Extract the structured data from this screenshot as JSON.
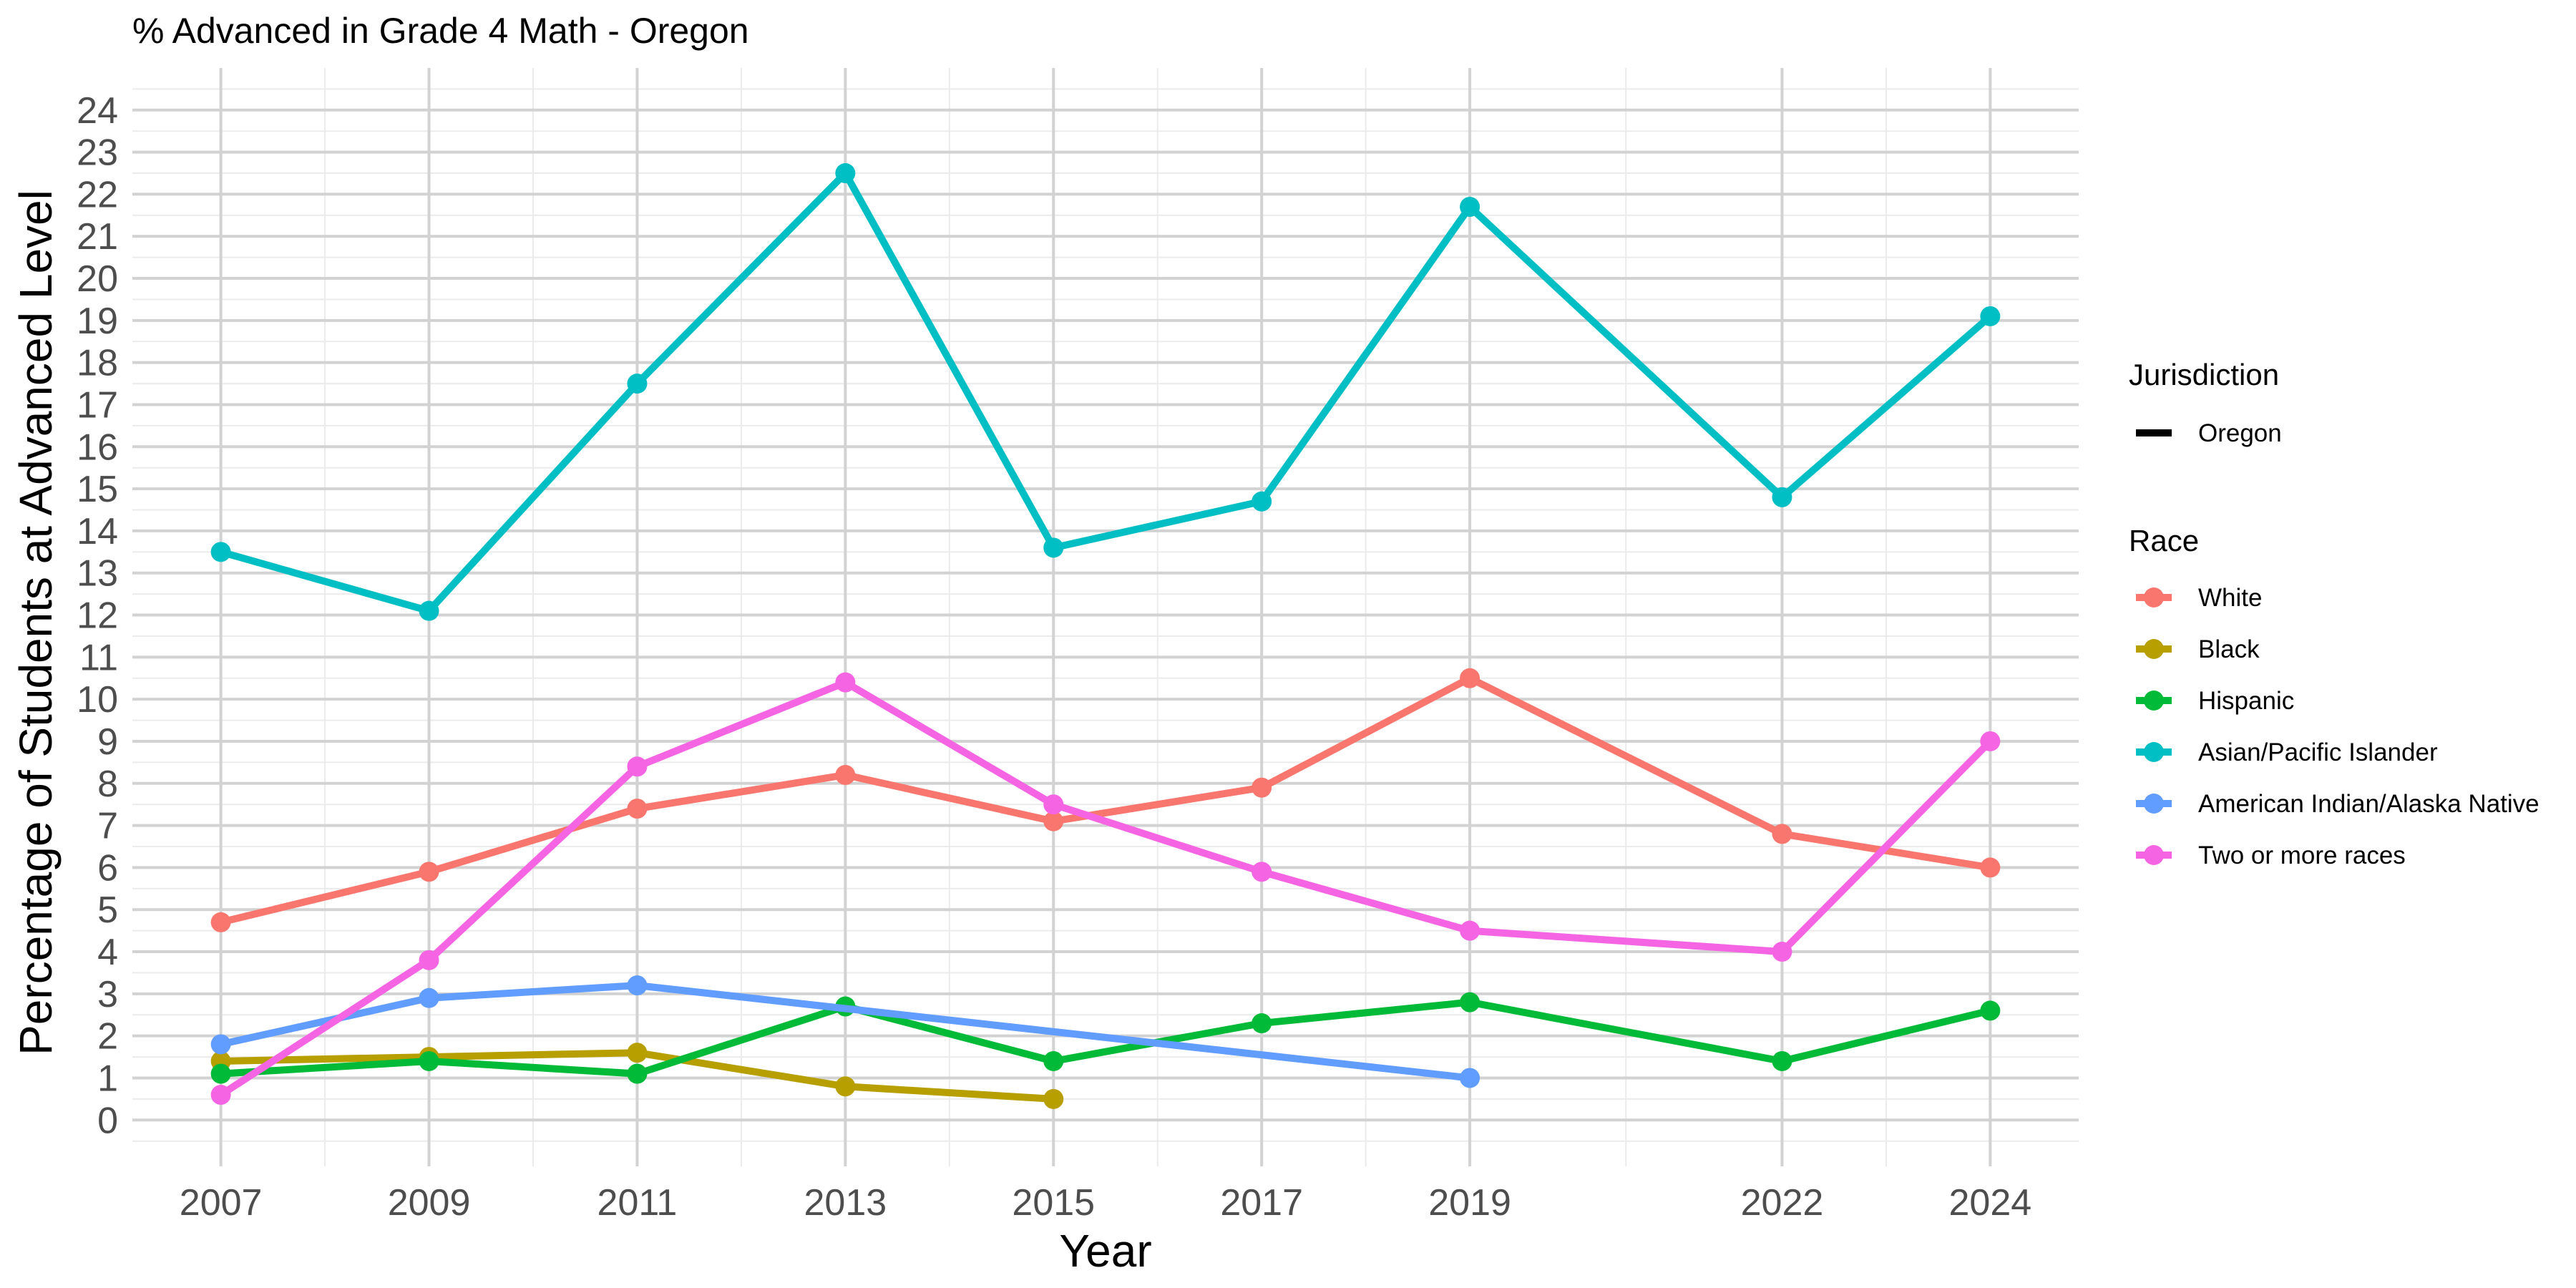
{
  "chart_data": {
    "type": "line",
    "title": "% Advanced in Grade 4 Math - Oregon",
    "xlabel": "Year",
    "ylabel": "Percentage of Students at Advanced Level",
    "x_ticks": [
      2007,
      2009,
      2011,
      2013,
      2015,
      2017,
      2019,
      2022,
      2024
    ],
    "y_ticks": [
      0,
      1,
      2,
      3,
      4,
      5,
      6,
      7,
      8,
      9,
      10,
      11,
      12,
      13,
      14,
      15,
      16,
      17,
      18,
      19,
      20,
      21,
      22,
      23,
      24
    ],
    "xlim": [
      2006.15,
      2024.85
    ],
    "ylim": [
      -1.1,
      25
    ],
    "grid": true,
    "legend_position": "right",
    "legend": {
      "jurisdiction_title": "Jurisdiction",
      "jurisdiction_items": [
        "Oregon"
      ],
      "race_title": "Race"
    },
    "series": [
      {
        "name": "White",
        "color": "#F8766D",
        "x": [
          2007,
          2009,
          2011,
          2013,
          2015,
          2017,
          2019,
          2022,
          2024
        ],
        "values": [
          4.7,
          5.9,
          7.4,
          8.2,
          7.1,
          7.9,
          10.5,
          6.8,
          6.0
        ]
      },
      {
        "name": "Black",
        "color": "#B79F00",
        "x": [
          2007,
          2009,
          2011,
          2013,
          2015
        ],
        "values": [
          1.4,
          1.5,
          1.6,
          0.8,
          0.5
        ]
      },
      {
        "name": "Hispanic",
        "color": "#00BA38",
        "x": [
          2007,
          2009,
          2011,
          2013,
          2015,
          2017,
          2019,
          2022,
          2024
        ],
        "values": [
          1.1,
          1.4,
          1.1,
          2.7,
          1.4,
          2.3,
          2.8,
          1.4,
          2.6
        ]
      },
      {
        "name": "Asian/Pacific Islander",
        "color": "#00BFC4",
        "x": [
          2007,
          2009,
          2011,
          2013,
          2015,
          2017,
          2019,
          2022,
          2024
        ],
        "values": [
          13.5,
          12.1,
          17.5,
          22.5,
          13.6,
          14.7,
          21.7,
          14.8,
          19.1
        ]
      },
      {
        "name": "American Indian/Alaska Native",
        "color": "#619CFF",
        "x": [
          2007,
          2009,
          2011,
          2019
        ],
        "values": [
          1.8,
          2.9,
          3.2,
          1.0
        ]
      },
      {
        "name": "Two or more races",
        "color": "#F564E3",
        "x": [
          2007,
          2009,
          2011,
          2013,
          2015,
          2017,
          2019,
          2022,
          2024
        ],
        "values": [
          0.6,
          3.8,
          8.4,
          10.4,
          7.5,
          5.9,
          4.5,
          4.0,
          9.0
        ]
      }
    ]
  }
}
